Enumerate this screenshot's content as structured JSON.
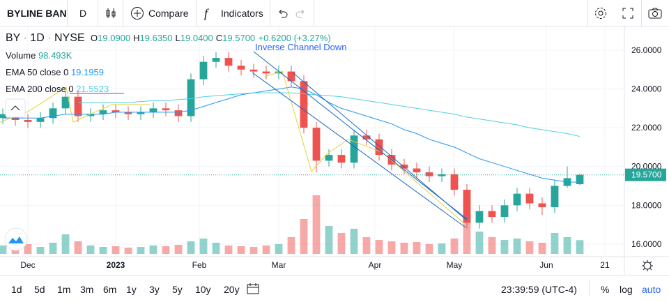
{
  "header": {
    "symbol_name": "BYLINE BAN",
    "interval": "D",
    "compare": "Compare",
    "indicators": "Indicators"
  },
  "legend": {
    "symbol": "BY",
    "interval": "1D",
    "exchange": "NYSE",
    "ohlc": [
      {
        "label": "O",
        "value": "19.0900"
      },
      {
        "label": "H",
        "value": "19.6350"
      },
      {
        "label": "L",
        "value": "19.0400"
      },
      {
        "label": "C",
        "value": "19.5700"
      }
    ],
    "change": "+0.6200 (+3.27%)",
    "volume_label": "Volume",
    "volume_value": "98.493K",
    "ema50_label": "EMA 50 close 0",
    "ema200_label": "EMA 200 close 0"
  },
  "chart_data": {
    "type": "candlestick",
    "annotations": [
      "Inverse Channel Down"
    ],
    "x": [
      -6,
      -3,
      0,
      3,
      6,
      9,
      12,
      15,
      18,
      21,
      24,
      27,
      30,
      33,
      36,
      39,
      42,
      45,
      48,
      51,
      54,
      57,
      60,
      63,
      66,
      69,
      72,
      75,
      78,
      81,
      84,
      87,
      90,
      93,
      96,
      99,
      102,
      105,
      108,
      111,
      114,
      117,
      120,
      123,
      126,
      129,
      132
    ],
    "open": [
      22.5,
      22.7,
      22.4,
      22.3,
      22.5,
      23.0,
      23.6,
      22.6,
      22.7,
      22.9,
      22.8,
      22.7,
      22.8,
      23.0,
      22.9,
      22.6,
      24.5,
      25.4,
      25.6,
      25.2,
      25.0,
      24.9,
      24.8,
      24.9,
      24.4,
      22.0,
      20.3,
      20.6,
      20.2,
      21.6,
      21.4,
      20.6,
      20.1,
      19.9,
      19.7,
      19.5,
      19.6,
      18.8,
      17.1,
      17.7,
      17.4,
      18.0,
      18.6,
      18.1,
      17.9,
      19.0,
      19.09
    ],
    "high": [
      23.0,
      23.0,
      22.7,
      22.8,
      23.3,
      23.9,
      23.9,
      23.0,
      23.2,
      23.2,
      23.1,
      23.1,
      23.3,
      23.3,
      23.2,
      24.8,
      25.7,
      25.9,
      25.9,
      25.5,
      25.3,
      25.2,
      25.2,
      25.2,
      24.7,
      22.3,
      20.9,
      20.9,
      21.9,
      21.9,
      21.7,
      20.9,
      20.4,
      20.2,
      20.0,
      19.9,
      19.9,
      19.1,
      18.0,
      18.0,
      18.3,
      18.9,
      18.9,
      18.4,
      19.3,
      20.0,
      19.635
    ],
    "low": [
      22.2,
      22.1,
      22.0,
      22.0,
      22.2,
      22.7,
      22.3,
      22.3,
      22.4,
      22.5,
      22.4,
      22.4,
      22.5,
      22.6,
      22.3,
      22.3,
      24.2,
      25.1,
      24.9,
      24.7,
      24.6,
      24.5,
      24.5,
      24.1,
      21.7,
      19.7,
      20.0,
      19.9,
      19.9,
      21.1,
      20.3,
      19.8,
      19.6,
      19.4,
      19.2,
      19.2,
      18.5,
      16.8,
      16.8,
      17.1,
      17.1,
      17.7,
      17.8,
      17.5,
      17.6,
      18.9,
      19.04
    ],
    "close": [
      22.7,
      22.4,
      22.3,
      22.5,
      23.0,
      23.6,
      22.6,
      22.7,
      22.9,
      22.8,
      22.7,
      22.8,
      23.0,
      22.9,
      22.6,
      24.5,
      25.4,
      25.6,
      25.2,
      25.0,
      24.9,
      24.8,
      24.9,
      24.4,
      22.0,
      20.3,
      20.6,
      20.2,
      21.6,
      21.4,
      20.6,
      20.1,
      19.9,
      19.7,
      19.5,
      19.6,
      18.8,
      17.1,
      17.7,
      17.4,
      18.0,
      18.6,
      18.1,
      17.9,
      19.0,
      19.4,
      19.57
    ],
    "volume": [
      60,
      55,
      70,
      50,
      80,
      140,
      90,
      60,
      50,
      55,
      45,
      50,
      60,
      55,
      65,
      90,
      110,
      80,
      60,
      55,
      50,
      60,
      70,
      120,
      250,
      420,
      200,
      150,
      180,
      120,
      100,
      90,
      80,
      85,
      70,
      75,
      110,
      300,
      160,
      120,
      100,
      110,
      90,
      80,
      150,
      120,
      98.493
    ],
    "up_color": "#26a69a",
    "down_color": "#ef5350",
    "series": [
      {
        "name": "EMA 50",
        "color": "#2196f3",
        "values": [
          22.5,
          22.5,
          22.5,
          22.5,
          22.6,
          22.7,
          22.7,
          22.7,
          22.7,
          22.8,
          22.8,
          22.8,
          22.8,
          22.8,
          22.8,
          22.9,
          23.1,
          23.3,
          23.5,
          23.7,
          23.8,
          23.9,
          24.0,
          24.1,
          24.0,
          23.7,
          23.3,
          23.0,
          22.8,
          22.6,
          22.4,
          22.2,
          21.9,
          21.7,
          21.4,
          21.2,
          21.0,
          20.7,
          20.4,
          20.2,
          20.0,
          19.8,
          19.6,
          19.4,
          19.3,
          19.2,
          19.1959
        ]
      },
      {
        "name": "EMA 200",
        "color": "#4dd0e1",
        "values": [
          null,
          null,
          null,
          null,
          null,
          null,
          23.3,
          23.3,
          23.3,
          23.3,
          23.3,
          23.35,
          23.4,
          23.4,
          23.45,
          23.5,
          23.6,
          23.65,
          23.7,
          23.75,
          23.8,
          23.8,
          23.8,
          23.8,
          23.75,
          23.7,
          23.65,
          23.6,
          23.5,
          23.4,
          23.3,
          23.2,
          23.1,
          23.0,
          22.9,
          22.8,
          22.7,
          22.55,
          22.45,
          22.35,
          22.25,
          22.15,
          22.0,
          21.9,
          21.8,
          21.7,
          21.5523
        ]
      }
    ],
    "price_label": {
      "value": 19.57,
      "label": "19.5700"
    },
    "xlim": [
      -6.67,
      142.67
    ],
    "xticks": [
      {
        "value": 0,
        "label": "Dec"
      },
      {
        "value": 21,
        "label": "2023"
      },
      {
        "value": 41,
        "label": "Feb"
      },
      {
        "value": 60,
        "label": "Mar"
      },
      {
        "value": 83,
        "label": "Apr"
      },
      {
        "value": 102,
        "label": "May"
      },
      {
        "value": 124,
        "label": "Jun"
      },
      {
        "value": 138,
        "label": "21"
      }
    ],
    "ylim": [
      15.35,
      27.15
    ],
    "yticks": [
      {
        "value": 16,
        "label": "16.0000"
      },
      {
        "value": 18,
        "label": "18.0000"
      },
      {
        "value": 20,
        "label": "20.0000"
      },
      {
        "value": 22,
        "label": "22.0000"
      },
      {
        "value": 24,
        "label": "24.0000"
      },
      {
        "value": 26,
        "label": "26.0000"
      }
    ],
    "grid": true
  },
  "footer": {
    "ranges": [
      "1d",
      "5d",
      "1m",
      "3m",
      "6m",
      "1y",
      "3y",
      "5y",
      "10y",
      "20y"
    ],
    "time": "23:39:59 (UTC-4)",
    "percent": "%",
    "log": "log",
    "auto": "auto"
  }
}
